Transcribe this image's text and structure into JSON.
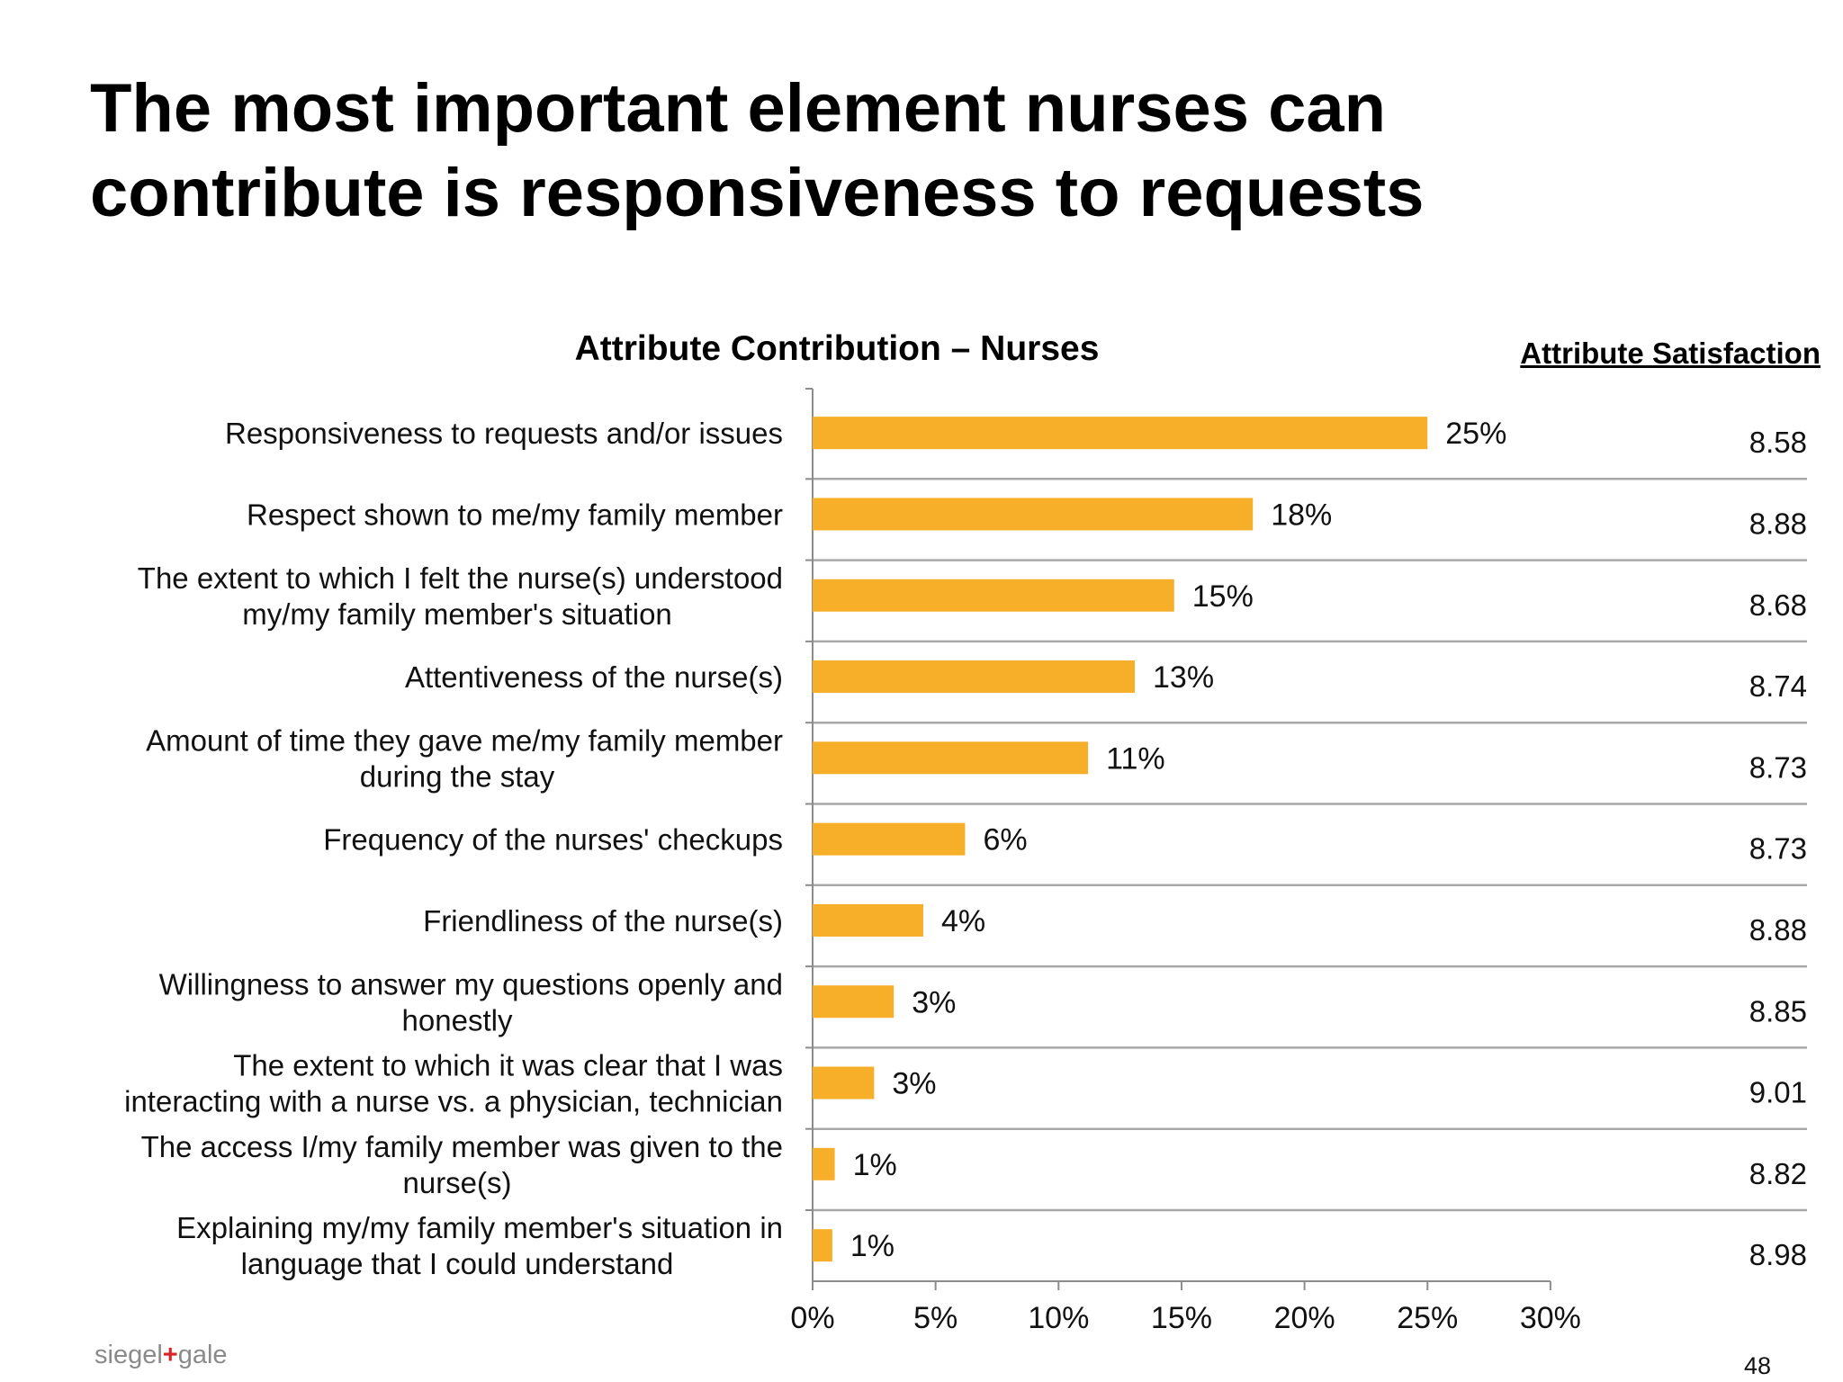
{
  "title_line1": "The most important element nurses can",
  "title_line2": "contribute is responsiveness to requests",
  "satisfaction_header": "Attribute Satisfaction",
  "logo": {
    "left": "siegel",
    "plus": "+",
    "right": "gale"
  },
  "page_number": "48",
  "colors": {
    "bar": "#F7AE28",
    "grid": "#a8a8a8",
    "axis": "#8c8c8c"
  },
  "chart_data": {
    "type": "bar",
    "orientation": "horizontal",
    "title": "Attribute Contribution – Nurses",
    "categories": [
      [
        "Responsiveness to requests and/or issues"
      ],
      [
        "Respect shown to me/my family member"
      ],
      [
        "The extent to which I felt the nurse(s) understood",
        "my/my family member's situation"
      ],
      [
        "Attentiveness of the nurse(s)"
      ],
      [
        "Amount of time they gave me/my family member",
        "during the stay"
      ],
      [
        "Frequency of the nurses' checkups"
      ],
      [
        "Friendliness of the nurse(s)"
      ],
      [
        "Willingness to answer my questions openly and",
        "honestly"
      ],
      [
        "The extent to which it was clear that I was",
        "interacting with a nurse vs. a physician, technician"
      ],
      [
        "The access I/my family member  was given to the",
        "nurse(s)"
      ],
      [
        "Explaining my/my family member's situation in",
        "language that I could understand"
      ]
    ],
    "values": [
      25,
      18,
      15,
      13,
      11,
      6,
      4,
      3,
      3,
      1,
      1
    ],
    "value_labels": [
      "25%",
      "18%",
      "15%",
      "13%",
      "11%",
      "6%",
      "4%",
      "3%",
      "3%",
      "1%",
      "1%"
    ],
    "bar_fractions": [
      0.25,
      0.179,
      0.147,
      0.131,
      0.112,
      0.062,
      0.045,
      0.033,
      0.025,
      0.009,
      0.008
    ],
    "satisfaction": [
      "8.58",
      "8.88",
      "8.68",
      "8.74",
      "8.73",
      "8.73",
      "8.88",
      "8.85",
      "9.01",
      "8.82",
      "8.98"
    ],
    "xlim": [
      0,
      30
    ],
    "x_ticks": [
      0,
      5,
      10,
      15,
      20,
      25,
      30
    ],
    "x_tick_labels": [
      "0%",
      "5%",
      "10%",
      "15%",
      "20%",
      "25%",
      "30%"
    ],
    "legend": "none"
  }
}
